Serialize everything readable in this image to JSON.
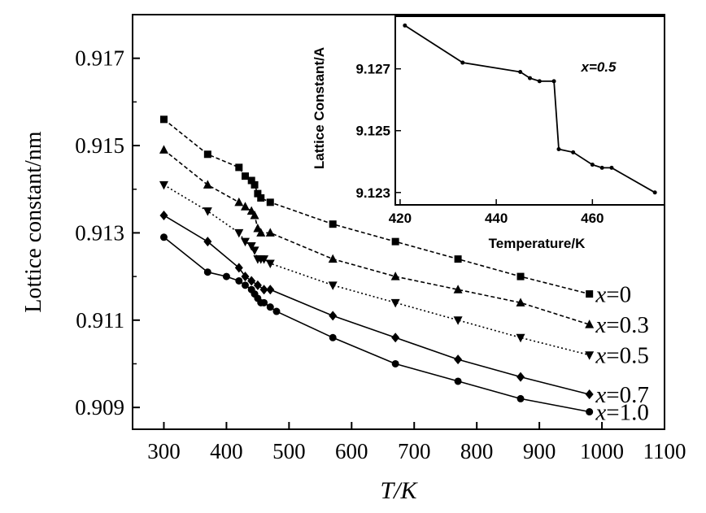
{
  "chart_data": [
    {
      "type": "line",
      "xlabel": "T/K",
      "ylabel": "Lottice constant/nm",
      "xlim": [
        250,
        1100
      ],
      "ylim": [
        0.9085,
        0.918
      ],
      "xticks": [
        300,
        400,
        500,
        600,
        700,
        800,
        900,
        1000,
        1100
      ],
      "yticks": [
        0.909,
        0.911,
        0.913,
        0.915,
        0.917
      ],
      "ytick_labels": [
        "0.909",
        "0.911",
        "0.913",
        "0.915",
        "0.917"
      ],
      "grid": false,
      "series": [
        {
          "name": "x=0",
          "marker": "square",
          "line": "dashed",
          "x": [
            300,
            370,
            420,
            430,
            440,
            445,
            450,
            455,
            470,
            570,
            670,
            770,
            870,
            980
          ],
          "y": [
            0.9156,
            0.9148,
            0.9145,
            0.9143,
            0.9142,
            0.9141,
            0.9139,
            0.9138,
            0.9137,
            0.9132,
            0.9128,
            0.9124,
            0.912,
            0.9116
          ]
        },
        {
          "name": "x=0.3",
          "marker": "triangle",
          "line": "dashed",
          "x": [
            300,
            370,
            420,
            430,
            440,
            445,
            450,
            455,
            470,
            570,
            670,
            770,
            870,
            980
          ],
          "y": [
            0.9149,
            0.9141,
            0.9137,
            0.9136,
            0.9135,
            0.9134,
            0.9131,
            0.913,
            0.913,
            0.9124,
            0.912,
            0.9117,
            0.9114,
            0.9109
          ]
        },
        {
          "name": "x=0.5",
          "marker": "triangle-down",
          "line": "dotted",
          "x": [
            300,
            370,
            420,
            430,
            440,
            445,
            450,
            455,
            460,
            470,
            570,
            670,
            770,
            870,
            980
          ],
          "y": [
            0.9141,
            0.9135,
            0.913,
            0.9128,
            0.9127,
            0.9126,
            0.9124,
            0.9124,
            0.9124,
            0.9123,
            0.9118,
            0.9114,
            0.911,
            0.9106,
            0.9102
          ]
        },
        {
          "name": "x=0.7",
          "marker": "diamond",
          "line": "solid",
          "x": [
            300,
            370,
            420,
            430,
            440,
            450,
            460,
            470,
            570,
            670,
            770,
            870,
            980
          ],
          "y": [
            0.9134,
            0.9128,
            0.9122,
            0.912,
            0.9119,
            0.9118,
            0.9117,
            0.9117,
            0.9111,
            0.9106,
            0.9101,
            0.9097,
            0.9093
          ]
        },
        {
          "name": "x=1.0",
          "marker": "circle",
          "line": "solid",
          "x": [
            300,
            370,
            400,
            420,
            430,
            440,
            445,
            450,
            455,
            460,
            470,
            480,
            570,
            670,
            770,
            870,
            980
          ],
          "y": [
            0.9129,
            0.9121,
            0.912,
            0.9119,
            0.9118,
            0.9117,
            0.9116,
            0.9115,
            0.9114,
            0.9114,
            0.9113,
            0.9112,
            0.9106,
            0.91,
            0.9096,
            0.9092,
            0.9089
          ]
        }
      ],
      "series_labels": [
        "x=0",
        "x=0.3",
        "x=0.5",
        "x=0.7",
        "x=1.0"
      ]
    },
    {
      "type": "line",
      "inset": true,
      "xlabel": "Temperature/K",
      "ylabel": "Lattice Constant/A",
      "annotation": "x=0.5",
      "xlim": [
        419,
        475
      ],
      "ylim": [
        9.1226,
        9.1287
      ],
      "xticks": [
        420,
        440,
        460
      ],
      "yticks": [
        9.123,
        9.125,
        9.127
      ],
      "ytick_labels": [
        "9.123",
        "9.125",
        "9.127"
      ],
      "series": [
        {
          "x": [
            421,
            433,
            445,
            447,
            449,
            452,
            453,
            456,
            460,
            462,
            464,
            473
          ],
          "y": [
            9.1284,
            9.1272,
            9.1269,
            9.1267,
            9.1266,
            9.1266,
            9.1244,
            9.1243,
            9.1239,
            9.1238,
            9.1238,
            9.123
          ]
        }
      ]
    }
  ]
}
